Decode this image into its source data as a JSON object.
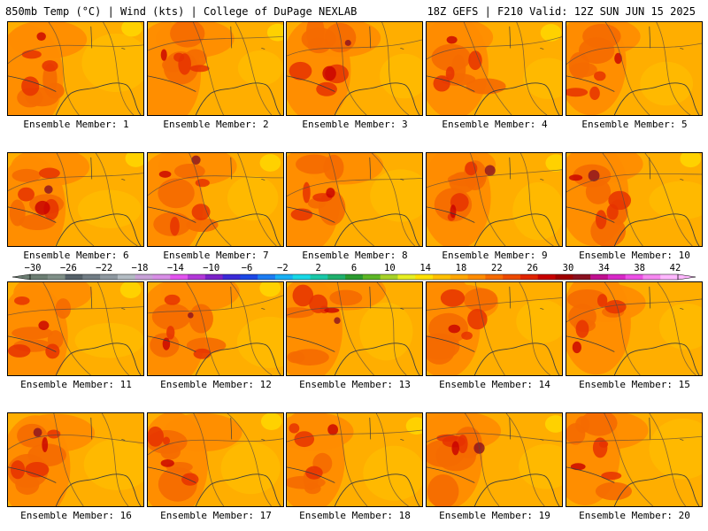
{
  "header": {
    "title_left": "850mb Temp (°C) | Wind (kts) | College of DuPage NEXLAB",
    "title_right": "18Z GEFS | F210 Valid: 12Z SUN JUN 15 2025"
  },
  "colorbar": {
    "labels": [
      "-30",
      "-26",
      "-22",
      "-18",
      "-14",
      "-10",
      "-6",
      "-2",
      "2",
      "6",
      "10",
      "14",
      "18",
      "22",
      "26",
      "30",
      "34",
      "38",
      "42"
    ],
    "colors": [
      "#6b7d72",
      "#7f8f87",
      "#546068",
      "#707c84",
      "#8e98a0",
      "#b3bcc3",
      "#c8a2d8",
      "#d88ee6",
      "#e254ee",
      "#b238d8",
      "#7b22c8",
      "#3b2ad8",
      "#1c48e6",
      "#1c7cf2",
      "#18b0f4",
      "#18d8e6",
      "#19c8a8",
      "#1fb06c",
      "#2a9a30",
      "#5cb626",
      "#a6d228",
      "#e6ee22",
      "#ffe000",
      "#ffc000",
      "#ffa600",
      "#ff8c00",
      "#f56a00",
      "#ec4a00",
      "#e02400",
      "#c80000",
      "#a00000",
      "#8a1020",
      "#c01090",
      "#d828c8",
      "#ec50e6",
      "#f688f0",
      "#ffb8ff"
    ],
    "colors_note": ""
  },
  "palette": {
    "base": "#ffae00",
    "warm": "#ff8c00",
    "hot": "#f56a00",
    "hotter": "#e63200",
    "hottest": "#c80000",
    "extreme": "#8a1020",
    "cool": "#ffc800",
    "coolest": "#ffe000"
  },
  "panels": [
    {
      "label": "Ensemble Member: 1"
    },
    {
      "label": "Ensemble Member: 2"
    },
    {
      "label": "Ensemble Member: 3"
    },
    {
      "label": "Ensemble Member: 4"
    },
    {
      "label": "Ensemble Member: 5"
    },
    {
      "label": "Ensemble Member: 6"
    },
    {
      "label": "Ensemble Member: 7"
    },
    {
      "label": "Ensemble Member: 8"
    },
    {
      "label": "Ensemble Member: 9"
    },
    {
      "label": "Ensemble Member: 10"
    },
    {
      "label": "Ensemble Member: 11"
    },
    {
      "label": "Ensemble Member: 12"
    },
    {
      "label": "Ensemble Member: 13"
    },
    {
      "label": "Ensemble Member: 14"
    },
    {
      "label": "Ensemble Member: 15"
    },
    {
      "label": "Ensemble Member: 16"
    },
    {
      "label": "Ensemble Member: 17"
    },
    {
      "label": "Ensemble Member: 18"
    },
    {
      "label": "Ensemble Member: 19"
    },
    {
      "label": "Ensemble Member: 20"
    }
  ]
}
